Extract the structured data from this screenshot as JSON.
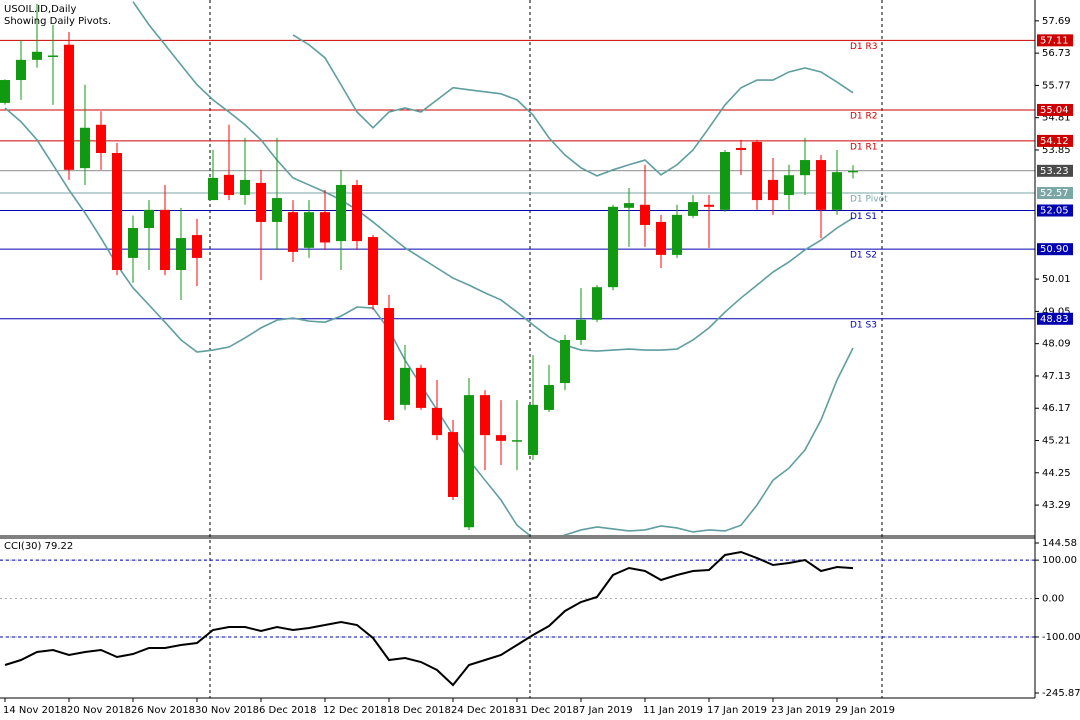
{
  "chart_data": [
    {
      "type": "candlestick",
      "title": "USOIL.ID,Daily",
      "subtitle": "Showing Daily Pivots.",
      "categories": [
        "14 Nov 2018",
        null,
        null,
        null,
        "20 Nov 2018",
        null,
        null,
        null,
        "26 Nov 2018",
        null,
        null,
        null,
        "30 Nov 2018",
        null,
        null,
        null,
        "6 Dec 2018",
        null,
        null,
        null,
        "12 Dec 2018",
        null,
        null,
        null,
        "18 Dec 2018",
        null,
        null,
        null,
        "24 Dec 2018",
        null,
        null,
        null,
        "31 Dec 2018",
        null,
        null,
        null,
        "7 Jan 2019",
        null,
        null,
        null,
        "11 Jan 2019",
        null,
        null,
        null,
        "17 Jan 2019",
        null,
        null,
        null,
        "23 Jan 2019",
        null,
        null,
        null,
        "29 Jan 2019",
        null
      ],
      "open": [
        55.25,
        55.93,
        56.53,
        56.64,
        56.98,
        53.31,
        54.6,
        53.76,
        50.64,
        51.53,
        52.07,
        50.28,
        51.32,
        52.36,
        53.11,
        52.51,
        52.87,
        51.71,
        52.0,
        50.94,
        52.0,
        51.14,
        52.81,
        51.26,
        49.15,
        46.27,
        47.37,
        46.18,
        45.46,
        42.63,
        46.56,
        45.37,
        45.2,
        44.78,
        46.12,
        46.92,
        48.2,
        48.8,
        49.77,
        52.13,
        52.22,
        51.71,
        50.73,
        51.89,
        52.22,
        52.07,
        53.91,
        54.09,
        52.96,
        52.51,
        53.1,
        53.55,
        52.07,
        53.19
      ],
      "high": [
        55.95,
        57.12,
        58.2,
        57.57,
        57.36,
        55.79,
        55.0,
        54.06,
        51.9,
        52.36,
        52.81,
        52.13,
        51.8,
        53.85,
        54.6,
        54.21,
        53.26,
        54.21,
        52.36,
        52.36,
        52.66,
        53.26,
        52.96,
        51.32,
        49.54,
        48.05,
        47.46,
        47.01,
        45.82,
        47.07,
        46.71,
        46.41,
        46.41,
        47.75,
        47.46,
        48.35,
        49.74,
        49.83,
        52.22,
        52.72,
        53.41,
        51.92,
        52.22,
        52.51,
        52.51,
        53.85,
        54.15,
        54.15,
        53.61,
        53.41,
        54.21,
        53.7,
        53.85,
        53.4
      ],
      "low": [
        55.2,
        55.34,
        56.3,
        55.19,
        52.96,
        52.81,
        53.26,
        50.13,
        49.9,
        50.28,
        50.13,
        49.39,
        49.8,
        52.36,
        52.36,
        52.22,
        49.98,
        50.88,
        50.52,
        50.64,
        50.88,
        50.28,
        50.88,
        49.1,
        45.76,
        46.12,
        46.12,
        45.22,
        43.44,
        42.55,
        44.33,
        44.48,
        44.33,
        44.63,
        46.06,
        46.71,
        48.05,
        48.73,
        49.68,
        50.97,
        50.97,
        50.34,
        50.64,
        51.83,
        50.94,
        52.01,
        53.11,
        52.07,
        51.92,
        52.07,
        52.51,
        51.23,
        51.92,
        53.0
      ],
      "close": [
        55.93,
        56.53,
        56.77,
        56.66,
        53.26,
        54.51,
        53.76,
        50.28,
        51.53,
        52.07,
        50.28,
        51.23,
        50.64,
        53.02,
        52.51,
        52.96,
        51.71,
        52.42,
        50.82,
        52.0,
        51.1,
        52.81,
        51.14,
        49.24,
        45.82,
        47.37,
        46.18,
        45.37,
        43.53,
        46.56,
        45.37,
        45.2,
        45.22,
        46.27,
        46.86,
        48.2,
        48.8,
        49.77,
        52.16,
        52.27,
        51.62,
        50.73,
        51.92,
        52.3,
        52.16,
        53.79,
        53.85,
        52.36,
        52.36,
        53.1,
        53.55,
        52.07,
        53.19,
        53.23
      ],
      "up_color": "#119911",
      "down_color": "#ff0000",
      "overlays": [
        {
          "color": "#5f9ea0",
          "values": [
            null,
            null,
            null,
            null,
            null,
            null,
            null,
            null,
            null,
            null,
            null,
            null,
            null,
            null,
            null,
            null,
            null,
            null,
            57.27,
            56.98,
            56.59,
            55.79,
            54.98,
            54.51,
            54.98,
            55.1,
            54.98,
            55.34,
            55.7,
            55.64,
            55.58,
            55.52,
            55.34,
            54.89,
            54.21,
            53.7,
            53.32,
            53.08,
            53.26,
            53.41,
            53.55,
            53.11,
            53.41,
            53.85,
            54.51,
            55.19,
            55.7,
            55.93,
            55.93,
            56.17,
            56.29,
            56.17,
            55.87,
            55.55
          ]
        },
        {
          "color": "#5f9ea0",
          "values": [
            null,
            null,
            null,
            null,
            null,
            null,
            null,
            null,
            58.26,
            57.57,
            56.98,
            56.38,
            55.79,
            55.34,
            54.98,
            54.6,
            54.15,
            53.55,
            53.02,
            52.81,
            52.6,
            52.36,
            52.07,
            51.71,
            51.32,
            50.94,
            50.64,
            50.34,
            50.04,
            49.83,
            49.6,
            49.39,
            49.03,
            48.65,
            48.29,
            48.05,
            47.9,
            47.87,
            47.9,
            47.93,
            47.9,
            47.9,
            47.93,
            48.2,
            48.56,
            49.03,
            49.45,
            49.83,
            50.22,
            50.52,
            50.88,
            51.17,
            51.53,
            51.83
          ]
        },
        {
          "color": "#5f9ea0",
          "values": [
            55.1,
            54.69,
            54.15,
            53.41,
            52.66,
            51.98,
            51.23,
            50.43,
            49.75,
            49.24,
            48.73,
            48.2,
            47.84,
            47.9,
            47.99,
            48.26,
            48.56,
            48.79,
            48.85,
            48.76,
            48.73,
            48.91,
            49.18,
            49.15,
            48.5,
            47.6,
            46.86,
            46.12,
            45.37,
            44.63,
            44.03,
            43.44,
            42.69,
            42.31,
            42.25,
            42.4,
            42.55,
            42.64,
            42.58,
            42.52,
            42.55,
            42.67,
            42.61,
            42.49,
            42.55,
            42.52,
            42.69,
            43.29,
            44.03,
            44.39,
            44.93,
            45.82,
            47.01,
            47.96
          ]
        }
      ],
      "levels": [
        {
          "name": "D1 R3",
          "value": 57.11,
          "value_label": "57.11",
          "color": "#cc0000"
        },
        {
          "name": "D1 R2",
          "value": 55.04,
          "value_label": "55.04",
          "color": "#cc0000"
        },
        {
          "name": "D1 R1",
          "value": 54.12,
          "value_label": "54.12",
          "color": "#cc0000"
        },
        {
          "name": "D1 Pivot",
          "value": 52.57,
          "value_label": "52.57",
          "color": "#7aa6a6"
        },
        {
          "name": "D1 S1",
          "value": 52.05,
          "value_label": "52.05",
          "color": "#0000b0"
        },
        {
          "name": "D1 S2",
          "value": 50.9,
          "value_label": "50.90",
          "color": "#0000b0"
        },
        {
          "name": "D1 S3",
          "value": 48.83,
          "value_label": "48.83",
          "color": "#0000b0"
        }
      ],
      "last_price": {
        "value": 53.23,
        "value_label": "53.23",
        "color": "#4a4a4a"
      },
      "ylim": [
        42.4,
        58.31
      ],
      "yticks": [
        57.69,
        56.73,
        55.77,
        54.81,
        53.85,
        50.01,
        49.05,
        48.09,
        47.13,
        46.17,
        45.21,
        44.25,
        43.29
      ]
    },
    {
      "type": "line",
      "title": "CCI(30) 79.22",
      "color": "#000000",
      "values": [
        -173.0,
        -160.0,
        -139.1,
        -133.9,
        -146.9,
        -139.1,
        -133.9,
        -152.2,
        -144.4,
        -128.7,
        -128.7,
        -120.9,
        -115.7,
        -81.9,
        -74.1,
        -74.1,
        -84.5,
        -74.1,
        -81.9,
        -76.7,
        -68.9,
        -61.1,
        -68.9,
        -102.7,
        -160.0,
        -154.8,
        -165.2,
        -186.0,
        -225.0,
        -173.0,
        -160.0,
        -146.9,
        -120.9,
        -94.9,
        -71.5,
        -32.4,
        -9.0,
        4.0,
        61.3,
        79.5,
        71.7,
        48.3,
        61.3,
        71.7,
        74.3,
        113.4,
        121.2,
        105.5,
        87.3,
        92.5,
        100.3,
        71.7,
        82.0,
        79.22
      ],
      "ylim": [
        -245.87,
        144.58
      ],
      "yticks": [
        {
          "value": 144.58,
          "label": "144.58"
        },
        {
          "value": 100,
          "label": "100.00"
        },
        {
          "value": 0,
          "label": "0.00"
        },
        {
          "value": -100,
          "label": "-100.00"
        },
        {
          "value": -245.87,
          "label": "-245.87"
        }
      ],
      "levels": [
        100,
        -100
      ],
      "level_color": "#0000aa",
      "grid": true
    }
  ]
}
